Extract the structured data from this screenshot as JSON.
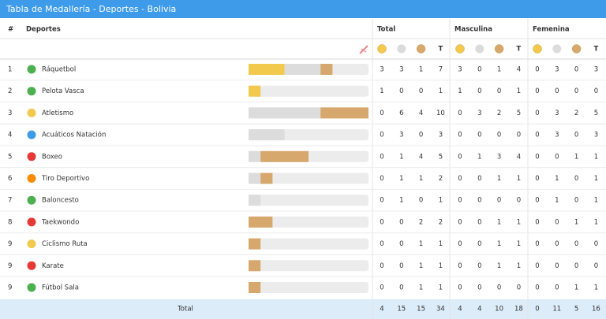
{
  "header": {
    "title": "Tabla de Medallería - Deportes - Bolivia"
  },
  "table": {
    "columns": {
      "rank": "#",
      "sport": "Deportes",
      "total": "Total",
      "male": "Masculina",
      "female": "Femenina",
      "t": "T"
    },
    "rows": [
      {
        "rank": 1,
        "sport": "Ráquetbol",
        "total": [
          3,
          3,
          1,
          7
        ],
        "male": [
          3,
          0,
          1,
          4
        ],
        "female": [
          0,
          3,
          0,
          3
        ]
      },
      {
        "rank": 2,
        "sport": "Pelota Vasca",
        "total": [
          1,
          0,
          0,
          1
        ],
        "male": [
          1,
          0,
          0,
          1
        ],
        "female": [
          0,
          0,
          0,
          0
        ]
      },
      {
        "rank": 3,
        "sport": "Atletismo",
        "total": [
          0,
          6,
          4,
          10
        ],
        "male": [
          0,
          3,
          2,
          5
        ],
        "female": [
          0,
          3,
          2,
          5
        ]
      },
      {
        "rank": 4,
        "sport": "Acuáticos Natación",
        "total": [
          0,
          3,
          0,
          3
        ],
        "male": [
          0,
          0,
          0,
          0
        ],
        "female": [
          0,
          3,
          0,
          3
        ]
      },
      {
        "rank": 5,
        "sport": "Boxeo",
        "total": [
          0,
          1,
          4,
          5
        ],
        "male": [
          0,
          1,
          3,
          4
        ],
        "female": [
          0,
          0,
          1,
          1
        ]
      },
      {
        "rank": 6,
        "sport": "Tiro Deportivo",
        "total": [
          0,
          1,
          1,
          2
        ],
        "male": [
          0,
          0,
          1,
          1
        ],
        "female": [
          0,
          1,
          0,
          1
        ]
      },
      {
        "rank": 7,
        "sport": "Baloncesto",
        "total": [
          0,
          1,
          0,
          1
        ],
        "male": [
          0,
          0,
          0,
          0
        ],
        "female": [
          0,
          1,
          0,
          1
        ]
      },
      {
        "rank": 8,
        "sport": "Taekwondo",
        "total": [
          0,
          0,
          2,
          2
        ],
        "male": [
          0,
          0,
          1,
          1
        ],
        "female": [
          0,
          0,
          1,
          1
        ]
      },
      {
        "rank": 9,
        "sport": "Ciclismo Ruta",
        "total": [
          0,
          0,
          1,
          1
        ],
        "male": [
          0,
          0,
          1,
          1
        ],
        "female": [
          0,
          0,
          0,
          0
        ]
      },
      {
        "rank": 9,
        "sport": "Karate",
        "total": [
          0,
          0,
          1,
          1
        ],
        "male": [
          0,
          0,
          1,
          1
        ],
        "female": [
          0,
          0,
          0,
          0
        ]
      },
      {
        "rank": 9,
        "sport": "Fútbol Sala",
        "total": [
          0,
          0,
          1,
          1
        ],
        "male": [
          0,
          0,
          0,
          0
        ],
        "female": [
          0,
          0,
          1,
          1
        ]
      }
    ],
    "footer": {
      "label": "Total",
      "total": [
        4,
        15,
        15,
        34
      ],
      "male": [
        4,
        4,
        10,
        18
      ],
      "female": [
        0,
        11,
        5,
        16
      ]
    }
  }
}
